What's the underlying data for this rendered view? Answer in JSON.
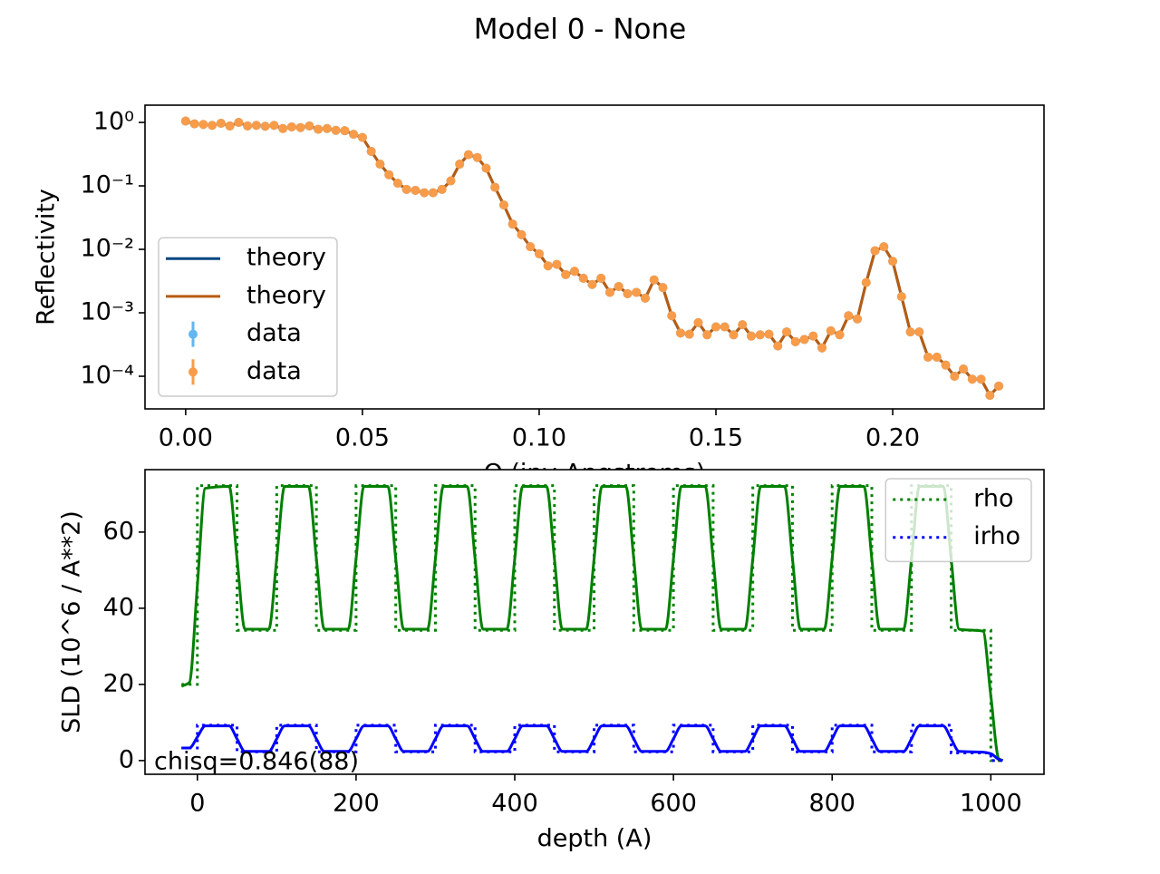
{
  "title": "Model 0 - None",
  "chart_data": [
    {
      "type": "line",
      "yscale": "log",
      "xlabel": "Q (inv Angstroms)",
      "ylabel": "Reflectivity",
      "legend": "lower left",
      "xlim": [
        -0.0115,
        0.2428
      ],
      "ylim": [
        3.06e-05,
        1.87
      ],
      "xticks": [
        {
          "value": 0,
          "label": "0.00"
        },
        0.05,
        {
          "value": 0.1,
          "label": "0.10"
        },
        0.15,
        {
          "value": 0.2,
          "label": "0.20"
        }
      ],
      "yticks": [
        {
          "value": 1,
          "label": "10⁰"
        },
        {
          "value": 0.1,
          "label": "10⁻¹"
        },
        {
          "value": 0.01,
          "label": "10⁻²"
        },
        {
          "value": 0.001,
          "label": "10⁻³"
        },
        {
          "value": 0.0001,
          "label": "10⁻⁴"
        }
      ],
      "x": [
        0,
        0.0025,
        0.005,
        0.0075,
        0.01,
        0.0125,
        0.015,
        0.0175,
        0.02,
        0.0225,
        0.025,
        0.0275,
        0.03,
        0.0325,
        0.035,
        0.0375,
        0.04,
        0.0425,
        0.045,
        0.0475,
        0.05,
        0.0525,
        0.055,
        0.0575,
        0.06,
        0.0625,
        0.065,
        0.0675,
        0.07,
        0.0725,
        0.075,
        0.0775,
        0.08,
        0.0825,
        0.085,
        0.0875,
        0.09,
        0.0925,
        0.095,
        0.0975,
        0.1,
        0.1025,
        0.105,
        0.1075,
        0.11,
        0.1125,
        0.115,
        0.1175,
        0.12,
        0.1225,
        0.125,
        0.1275,
        0.13,
        0.1325,
        0.135,
        0.1375,
        0.14,
        0.1425,
        0.145,
        0.1475,
        0.15,
        0.1525,
        0.155,
        0.1575,
        0.16,
        0.1625,
        0.165,
        0.1675,
        0.17,
        0.1725,
        0.175,
        0.1775,
        0.18,
        0.1825,
        0.185,
        0.1875,
        0.19,
        0.1925,
        0.195,
        0.1975,
        0.2,
        0.2025,
        0.205,
        0.2075,
        0.21,
        0.2125,
        0.215,
        0.2175,
        0.22,
        0.2225,
        0.225,
        0.2275,
        0.23
      ],
      "series": [
        {
          "name": "theory",
          "color": "#00467f",
          "linestyle": "-",
          "values": [
            1.05,
            0.95,
            0.93,
            0.9,
            0.97,
            0.88,
            1.0,
            0.88,
            0.9,
            0.87,
            0.9,
            0.8,
            0.85,
            0.83,
            0.88,
            0.78,
            0.8,
            0.75,
            0.74,
            0.65,
            0.58,
            0.35,
            0.22,
            0.15,
            0.11,
            0.088,
            0.085,
            0.078,
            0.078,
            0.088,
            0.12,
            0.22,
            0.31,
            0.28,
            0.19,
            0.095,
            0.05,
            0.025,
            0.017,
            0.011,
            0.0085,
            0.0055,
            0.0058,
            0.004,
            0.0045,
            0.0035,
            0.0028,
            0.0035,
            0.0021,
            0.0026,
            0.002,
            0.0021,
            0.0017,
            0.0033,
            0.0025,
            0.0009,
            0.00048,
            0.00046,
            0.0007,
            0.00045,
            0.0006,
            0.0006,
            0.00045,
            0.00065,
            0.00043,
            0.00045,
            0.00046,
            0.0003,
            0.0005,
            0.00035,
            0.00038,
            0.00043,
            0.00028,
            0.00052,
            0.00045,
            0.0009,
            0.0008,
            0.003,
            0.0095,
            0.011,
            0.0065,
            0.0018,
            0.0005,
            0.0005,
            0.0002,
            0.0002,
            0.00015,
            0.0001,
            0.00013,
            9e-05,
            9e-05,
            5e-05,
            7e-05
          ]
        },
        {
          "name": "theory",
          "color": "#b85c10",
          "linestyle": "-",
          "values": [
            1.05,
            0.95,
            0.93,
            0.9,
            0.97,
            0.88,
            1.0,
            0.88,
            0.9,
            0.87,
            0.9,
            0.8,
            0.85,
            0.83,
            0.88,
            0.78,
            0.8,
            0.75,
            0.74,
            0.65,
            0.58,
            0.35,
            0.22,
            0.15,
            0.11,
            0.088,
            0.085,
            0.078,
            0.078,
            0.088,
            0.12,
            0.22,
            0.31,
            0.28,
            0.19,
            0.095,
            0.05,
            0.025,
            0.017,
            0.011,
            0.0085,
            0.0055,
            0.0058,
            0.004,
            0.0045,
            0.0035,
            0.0028,
            0.0035,
            0.0021,
            0.0026,
            0.002,
            0.0021,
            0.0017,
            0.0033,
            0.0025,
            0.0009,
            0.00048,
            0.00046,
            0.0007,
            0.00045,
            0.0006,
            0.0006,
            0.00045,
            0.00065,
            0.00043,
            0.00045,
            0.00046,
            0.0003,
            0.0005,
            0.00035,
            0.00038,
            0.00043,
            0.00028,
            0.00052,
            0.00045,
            0.0009,
            0.0008,
            0.003,
            0.0095,
            0.011,
            0.0065,
            0.0018,
            0.0005,
            0.0005,
            0.0002,
            0.0002,
            0.00015,
            0.0001,
            0.00013,
            9e-05,
            9e-05,
            5e-05,
            7e-05
          ]
        },
        {
          "name": "data",
          "color": "#62b6f2",
          "marker": "o",
          "values": [
            1.05,
            0.95,
            0.93,
            0.9,
            0.97,
            0.88,
            1.0,
            0.88,
            0.9,
            0.87,
            0.9,
            0.8,
            0.85,
            0.83,
            0.88,
            0.78,
            0.8,
            0.75,
            0.74,
            0.65,
            0.58,
            0.35,
            0.22,
            0.15,
            0.11,
            0.088,
            0.085,
            0.078,
            0.078,
            0.088,
            0.12,
            0.22,
            0.31,
            0.28,
            0.19,
            0.095,
            0.05,
            0.025,
            0.017,
            0.011,
            0.0085,
            0.0055,
            0.0058,
            0.004,
            0.0045,
            0.0035,
            0.0028,
            0.0035,
            0.0021,
            0.0026,
            0.002,
            0.0021,
            0.0017,
            0.0033,
            0.0025,
            0.0009,
            0.00048,
            0.00046,
            0.0007,
            0.00045,
            0.0006,
            0.0006,
            0.00045,
            0.00065,
            0.00043,
            0.00045,
            0.00046,
            0.0003,
            0.0005,
            0.00035,
            0.00038,
            0.00043,
            0.00028,
            0.00052,
            0.00045,
            0.0009,
            0.0008,
            0.003,
            0.0095,
            0.011,
            0.0065,
            0.0018,
            0.0005,
            0.0005,
            0.0002,
            0.0002,
            0.00015,
            0.0001,
            0.00013,
            9e-05,
            9e-05,
            5e-05,
            7e-05
          ]
        },
        {
          "name": "data",
          "color": "#f89c4a",
          "marker": "o",
          "values": [
            1.05,
            0.95,
            0.93,
            0.9,
            0.97,
            0.88,
            1.0,
            0.88,
            0.9,
            0.87,
            0.9,
            0.8,
            0.85,
            0.83,
            0.88,
            0.78,
            0.8,
            0.75,
            0.74,
            0.65,
            0.58,
            0.35,
            0.22,
            0.15,
            0.11,
            0.088,
            0.085,
            0.078,
            0.078,
            0.088,
            0.12,
            0.22,
            0.31,
            0.28,
            0.19,
            0.095,
            0.05,
            0.025,
            0.017,
            0.011,
            0.0085,
            0.0055,
            0.0058,
            0.004,
            0.0045,
            0.0035,
            0.0028,
            0.0035,
            0.0021,
            0.0026,
            0.002,
            0.0021,
            0.0017,
            0.0033,
            0.0025,
            0.0009,
            0.00048,
            0.00046,
            0.0007,
            0.00045,
            0.0006,
            0.0006,
            0.00045,
            0.00065,
            0.00043,
            0.00045,
            0.00046,
            0.0003,
            0.0005,
            0.00035,
            0.00038,
            0.00043,
            0.00028,
            0.00052,
            0.00045,
            0.0009,
            0.0008,
            0.003,
            0.0095,
            0.011,
            0.0065,
            0.0018,
            0.0005,
            0.0005,
            0.0002,
            0.0002,
            0.00015,
            0.0001,
            0.00013,
            9e-05,
            9e-05,
            5e-05,
            7e-05
          ]
        }
      ]
    },
    {
      "type": "line",
      "xlabel": "depth (A)",
      "ylabel": "SLD (10^6 / A**2)",
      "legend": "upper right",
      "annotation": "chisq=0.846(88)",
      "xlim": [
        -66,
        1067
      ],
      "ylim": [
        -3.6,
        76.4
      ],
      "xticks": [
        0,
        200,
        400,
        600,
        800,
        1000
      ],
      "yticks": [
        0,
        20,
        40,
        60
      ],
      "series": [
        {
          "name": "rho",
          "color": "#008000",
          "linestyle": ":",
          "x": [
            -20,
            0,
            0,
            50,
            50,
            100,
            100,
            150,
            150,
            200,
            200,
            250,
            250,
            300,
            300,
            350,
            350,
            400,
            400,
            450,
            450,
            500,
            500,
            550,
            550,
            600,
            600,
            650,
            650,
            700,
            700,
            750,
            750,
            800,
            800,
            850,
            850,
            900,
            900,
            950,
            950,
            1000,
            1000,
            1015
          ],
          "values": [
            20,
            20,
            72.2,
            72.2,
            34.2,
            34.2,
            72.2,
            72.2,
            34.2,
            34.2,
            72.2,
            72.2,
            34.2,
            34.2,
            72.2,
            72.2,
            34.2,
            34.2,
            72.2,
            72.2,
            34.2,
            34.2,
            72.2,
            72.2,
            34.2,
            34.2,
            72.2,
            72.2,
            34.2,
            34.2,
            72.2,
            72.2,
            34.2,
            34.2,
            72.2,
            72.2,
            34.2,
            34.2,
            72.2,
            72.2,
            34.2,
            34.2,
            0,
            0
          ]
        },
        {
          "name": "irho",
          "color": "#0000ff",
          "linestyle": ":",
          "x": [
            -20,
            0,
            0,
            50,
            50,
            100,
            100,
            150,
            150,
            200,
            200,
            250,
            250,
            300,
            300,
            350,
            350,
            400,
            400,
            450,
            450,
            500,
            500,
            550,
            550,
            600,
            600,
            650,
            650,
            700,
            700,
            750,
            750,
            800,
            800,
            850,
            850,
            900,
            900,
            950,
            950,
            1000,
            1000,
            1015
          ],
          "values": [
            3.3,
            3.3,
            9.3,
            9.3,
            2.3,
            2.3,
            9.3,
            9.3,
            2.3,
            2.3,
            9.3,
            9.3,
            2.3,
            2.3,
            9.3,
            9.3,
            2.3,
            2.3,
            9.3,
            9.3,
            2.3,
            2.3,
            9.3,
            9.3,
            2.3,
            2.3,
            9.3,
            9.3,
            2.3,
            2.3,
            9.3,
            9.3,
            2.3,
            2.3,
            9.3,
            9.3,
            2.3,
            2.3,
            9.3,
            9.3,
            2.0,
            2.0,
            0,
            0
          ]
        },
        {
          "color": "#008000",
          "linestyle": "-",
          "smooth": true,
          "x": [
            -20,
            -10,
            0,
            10,
            40,
            50,
            60,
            90,
            100,
            110,
            140,
            150,
            160,
            190,
            200,
            210,
            240,
            250,
            260,
            290,
            300,
            310,
            340,
            350,
            360,
            390,
            400,
            410,
            440,
            450,
            460,
            490,
            500,
            510,
            540,
            550,
            560,
            590,
            600,
            610,
            640,
            650,
            660,
            690,
            700,
            710,
            740,
            750,
            760,
            790,
            800,
            810,
            840,
            850,
            860,
            890,
            900,
            910,
            940,
            950,
            960,
            990,
            1000,
            1010,
            1015
          ],
          "values": [
            19.5,
            20.5,
            46,
            71.5,
            72,
            53,
            34.5,
            34.5,
            53,
            72,
            72,
            53,
            34.5,
            34.5,
            53,
            72,
            72,
            53,
            34.5,
            34.5,
            53,
            72,
            72,
            53,
            34.5,
            34.5,
            53,
            72,
            72,
            53,
            34.5,
            34.5,
            53,
            72,
            72,
            53,
            34.5,
            34.5,
            53,
            72,
            72,
            53,
            34.5,
            34.5,
            53,
            72,
            72,
            53,
            34.5,
            34.5,
            53,
            72,
            72,
            53,
            34.5,
            34.5,
            53,
            72,
            72,
            53,
            34.5,
            34,
            17,
            0.5,
            0
          ]
        },
        {
          "color": "#0000ff",
          "linestyle": "-",
          "smooth": true,
          "x": [
            -20,
            -10,
            0,
            10,
            40,
            50,
            60,
            90,
            100,
            110,
            140,
            150,
            160,
            190,
            200,
            210,
            240,
            250,
            260,
            290,
            300,
            310,
            340,
            350,
            360,
            390,
            400,
            410,
            440,
            450,
            460,
            490,
            500,
            510,
            540,
            550,
            560,
            590,
            600,
            610,
            640,
            650,
            660,
            690,
            700,
            710,
            740,
            750,
            760,
            790,
            800,
            810,
            840,
            850,
            860,
            890,
            900,
            910,
            940,
            950,
            960,
            990,
            1000,
            1010,
            1015
          ],
          "values": [
            3.3,
            3.3,
            6.2,
            9.1,
            9.1,
            5.7,
            2.4,
            2.4,
            5.7,
            9.1,
            9.1,
            5.7,
            2.4,
            2.4,
            5.7,
            9.1,
            9.1,
            5.7,
            2.4,
            2.4,
            5.7,
            9.1,
            9.1,
            5.7,
            2.4,
            2.4,
            5.7,
            9.1,
            9.1,
            5.7,
            2.4,
            2.4,
            5.7,
            9.1,
            9.1,
            5.7,
            2.4,
            2.4,
            5.7,
            9.1,
            9.1,
            5.7,
            2.4,
            2.4,
            5.7,
            9.1,
            9.1,
            5.7,
            2.4,
            2.4,
            5.7,
            9.1,
            9.1,
            5.7,
            2.4,
            2.4,
            5.7,
            9.1,
            9.1,
            5.7,
            2.4,
            2.2,
            1.8,
            0.3,
            0
          ]
        }
      ]
    }
  ]
}
